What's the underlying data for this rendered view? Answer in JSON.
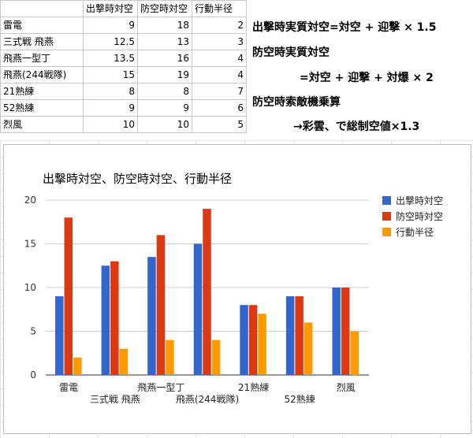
{
  "table": {
    "headers": [
      "",
      "出撃時対空",
      "防空時対空",
      "行動半径"
    ],
    "rows": [
      [
        "雷電",
        "9",
        "18",
        "2"
      ],
      [
        "三式戦 飛燕",
        "12.5",
        "13",
        "3"
      ],
      [
        "飛燕一型丁",
        "13.5",
        "16",
        "4"
      ],
      [
        "飛燕(244戦隊)",
        "15",
        "19",
        "4"
      ],
      [
        "21熟練",
        "8",
        "8",
        "7"
      ],
      [
        "52熟練",
        "9",
        "9",
        "6"
      ],
      [
        "烈風",
        "10",
        "10",
        "5"
      ]
    ]
  },
  "notes": {
    "line1": "出撃時実質対空=対空 + 迎撃 × 1.5",
    "line2": "防空時実質対空",
    "line3": "=対空 + 迎撃 + 対爆 × 2",
    "line4": "防空時索敵機乗算",
    "line5": "→彩雲、で総制空値×1.3"
  },
  "chart_data": {
    "type": "bar",
    "title": "出撃時対空、防空時対空、行動半径",
    "categories": [
      "雷電",
      "三式戦 飛燕",
      "飛燕一型丁",
      "飛燕(244戦隊)",
      "21熟練",
      "52熟練",
      "烈風"
    ],
    "series": [
      {
        "name": "出撃時対空",
        "values": [
          9,
          12.5,
          13.5,
          15,
          8,
          9,
          10
        ],
        "color": "#3366cc"
      },
      {
        "name": "防空時対空",
        "values": [
          18,
          13,
          16,
          19,
          8,
          9,
          10
        ],
        "color": "#dc3912"
      },
      {
        "name": "行動半径",
        "values": [
          2,
          3,
          4,
          4,
          7,
          6,
          5
        ],
        "color": "#ff9900"
      }
    ],
    "ylim": [
      0,
      20
    ],
    "yticks": [
      0,
      5,
      10,
      15,
      20
    ],
    "grid": true,
    "legend": "right"
  }
}
